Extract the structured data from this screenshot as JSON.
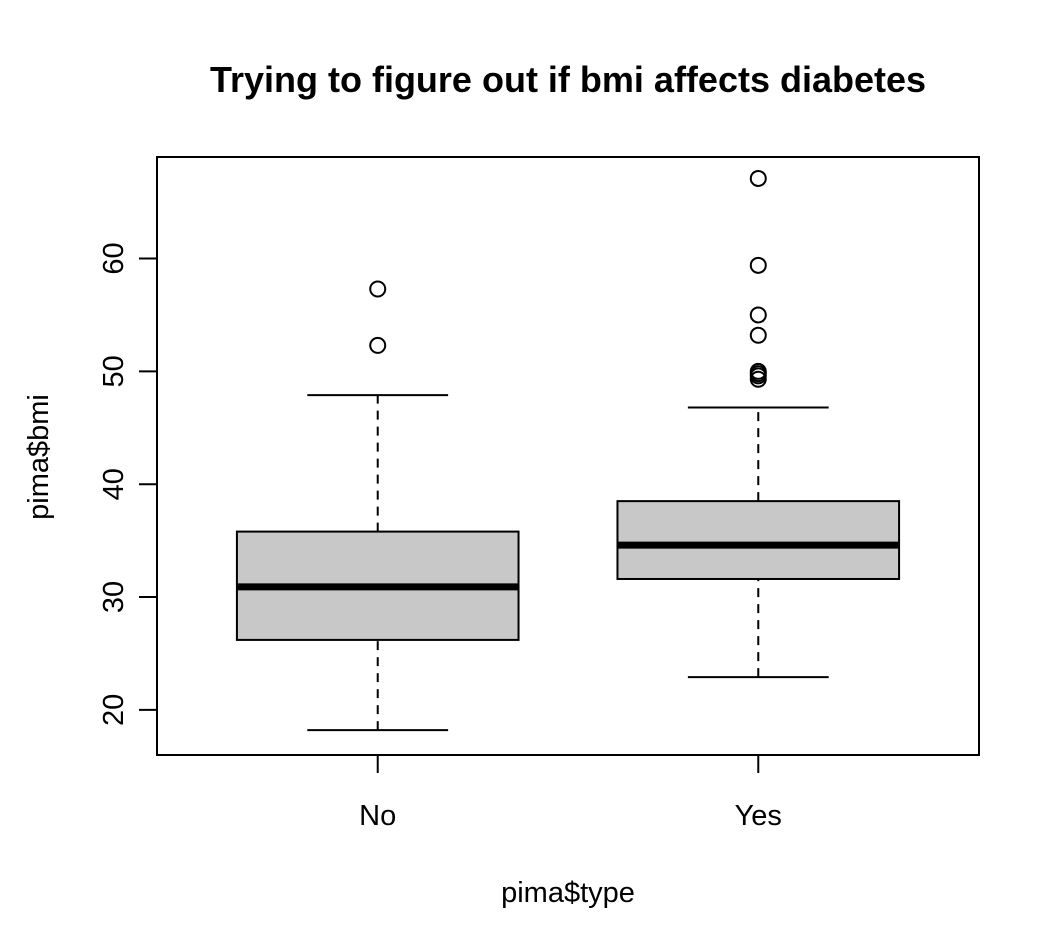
{
  "chart_data": {
    "type": "boxplot",
    "title": "Trying to figure out if bmi affects diabetes",
    "xlabel": "pima$type",
    "ylabel": "pima$bmi",
    "categories": [
      "No",
      "Yes"
    ],
    "ylim": [
      16,
      69
    ],
    "yticks": [
      20,
      30,
      40,
      50,
      60
    ],
    "ytick_labels": [
      "20",
      "30",
      "40",
      "50",
      "60"
    ],
    "grid": false,
    "legend": "none",
    "boxes": [
      {
        "category": "No",
        "whisker_low": 18.2,
        "q1": 26.2,
        "median": 30.9,
        "q3": 35.8,
        "whisker_high": 47.9,
        "outliers": [
          52.3,
          57.3
        ]
      },
      {
        "category": "Yes",
        "whisker_low": 22.9,
        "q1": 31.6,
        "median": 34.6,
        "q3": 38.5,
        "whisker_high": 46.8,
        "outliers": [
          49.3,
          49.6,
          49.8,
          50.0,
          53.2,
          55.0,
          59.4,
          67.1
        ]
      }
    ],
    "colors": {
      "box_fill": "#c8c8c8",
      "stroke": "#000000",
      "background": "#ffffff"
    }
  }
}
